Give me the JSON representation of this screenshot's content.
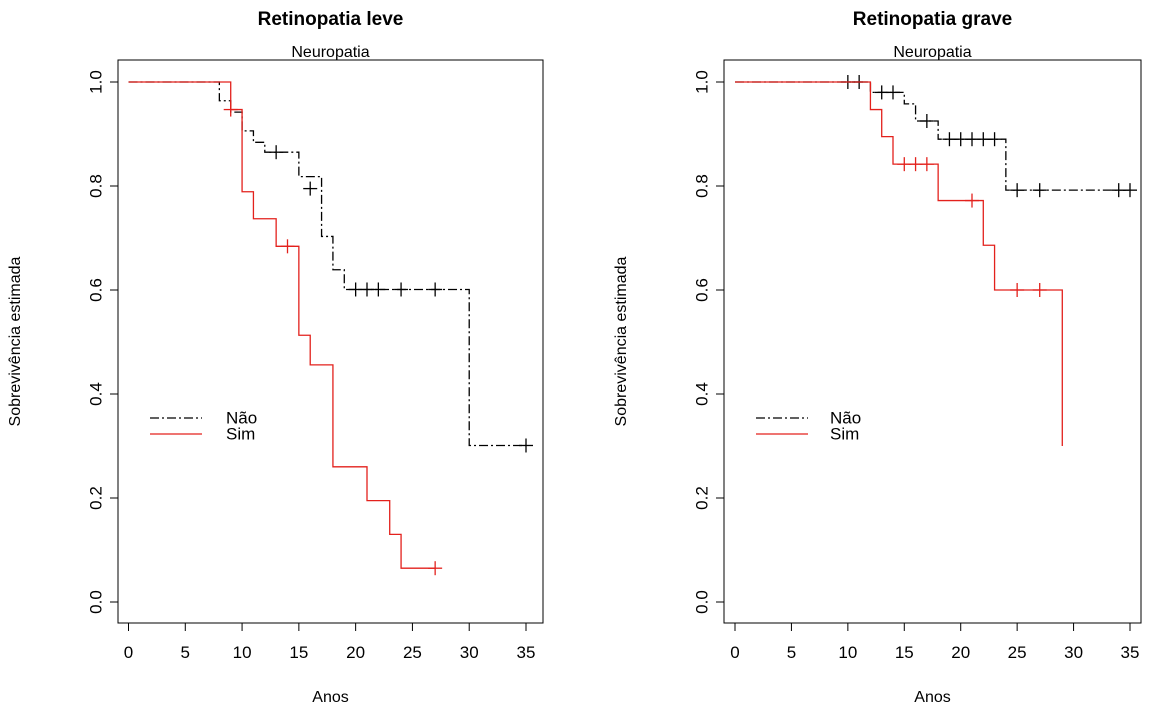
{
  "chart_data": [
    {
      "type": "line",
      "title": "Retinopatia leve",
      "subtitle": "Neuropatia",
      "xlabel": "Anos",
      "ylabel": "Sobrevivência estimada",
      "xlim": [
        0,
        35
      ],
      "ylim": [
        0,
        1
      ],
      "xticks": [
        "0",
        "5",
        "10",
        "15",
        "20",
        "25",
        "30",
        "35"
      ],
      "yticks": [
        "0.0",
        "0.2",
        "0.4",
        "0.6",
        "0.8",
        "1.0"
      ],
      "grid": false,
      "legend_position": "left",
      "series": [
        {
          "name": "Não",
          "color": "#000000",
          "line_style": "dash-dot",
          "steps": [
            [
              0,
              1.0
            ],
            [
              8,
              0.964
            ],
            [
              9,
              0.942
            ],
            [
              10,
              0.906
            ],
            [
              11,
              0.884
            ],
            [
              12,
              0.865
            ],
            [
              15,
              0.818
            ],
            [
              17,
              0.703
            ],
            [
              18,
              0.639
            ],
            [
              19,
              0.601
            ],
            [
              30,
              0.301
            ],
            [
              35,
              0.301
            ]
          ],
          "censored": [
            [
              13,
              0.865
            ],
            [
              16,
              0.795
            ],
            [
              20,
              0.601
            ],
            [
              21,
              0.601
            ],
            [
              22,
              0.601
            ],
            [
              24,
              0.601
            ],
            [
              27,
              0.601
            ],
            [
              35,
              0.301
            ]
          ]
        },
        {
          "name": "Sim",
          "color": "#e3211c",
          "line_style": "solid",
          "steps": [
            [
              0,
              1.0
            ],
            [
              9,
              0.947
            ],
            [
              10,
              0.789
            ],
            [
              11,
              0.737
            ],
            [
              13,
              0.684
            ],
            [
              15,
              0.513
            ],
            [
              16,
              0.456
            ],
            [
              18,
              0.26
            ],
            [
              21,
              0.195
            ],
            [
              23,
              0.13
            ],
            [
              24,
              0.065
            ],
            [
              27,
              0.065
            ]
          ],
          "censored": [
            [
              9,
              0.947
            ],
            [
              14,
              0.684
            ],
            [
              27,
              0.065
            ]
          ]
        }
      ]
    },
    {
      "type": "line",
      "title": "Retinopatia grave",
      "subtitle": "Neuropatia",
      "xlabel": "Anos",
      "ylabel": "Sobrevivência estimada",
      "xlim": [
        0,
        35
      ],
      "ylim": [
        0,
        1
      ],
      "xticks": [
        "0",
        "5",
        "10",
        "15",
        "20",
        "25",
        "30",
        "35"
      ],
      "yticks": [
        "0.0",
        "0.2",
        "0.4",
        "0.6",
        "0.8",
        "1.0"
      ],
      "grid": false,
      "legend_position": "left",
      "series": [
        {
          "name": "Não",
          "color": "#000000",
          "line_style": "dash-dot",
          "steps": [
            [
              0,
              1.0
            ],
            [
              12,
              0.98
            ],
            [
              15,
              0.958
            ],
            [
              16,
              0.925
            ],
            [
              18,
              0.89
            ],
            [
              24,
              0.792
            ],
            [
              35,
              0.792
            ]
          ],
          "censored": [
            [
              10,
              1.0
            ],
            [
              11,
              1.0
            ],
            [
              13,
              0.98
            ],
            [
              14,
              0.98
            ],
            [
              17,
              0.925
            ],
            [
              19,
              0.89
            ],
            [
              20,
              0.89
            ],
            [
              21,
              0.89
            ],
            [
              22,
              0.89
            ],
            [
              23,
              0.89
            ],
            [
              25,
              0.792
            ],
            [
              27,
              0.792
            ],
            [
              34,
              0.792
            ],
            [
              35,
              0.792
            ]
          ]
        },
        {
          "name": "Sim",
          "color": "#e3211c",
          "line_style": "solid",
          "steps": [
            [
              0,
              1.0
            ],
            [
              12,
              0.947
            ],
            [
              13,
              0.895
            ],
            [
              14,
              0.842
            ],
            [
              18,
              0.772
            ],
            [
              22,
              0.686
            ],
            [
              23,
              0.6
            ],
            [
              29,
              0.3
            ],
            [
              29,
              0.3
            ]
          ],
          "censored": [
            [
              15,
              0.842
            ],
            [
              16,
              0.842
            ],
            [
              17,
              0.842
            ],
            [
              21,
              0.772
            ],
            [
              25,
              0.6
            ],
            [
              27,
              0.6
            ]
          ]
        }
      ]
    }
  ]
}
